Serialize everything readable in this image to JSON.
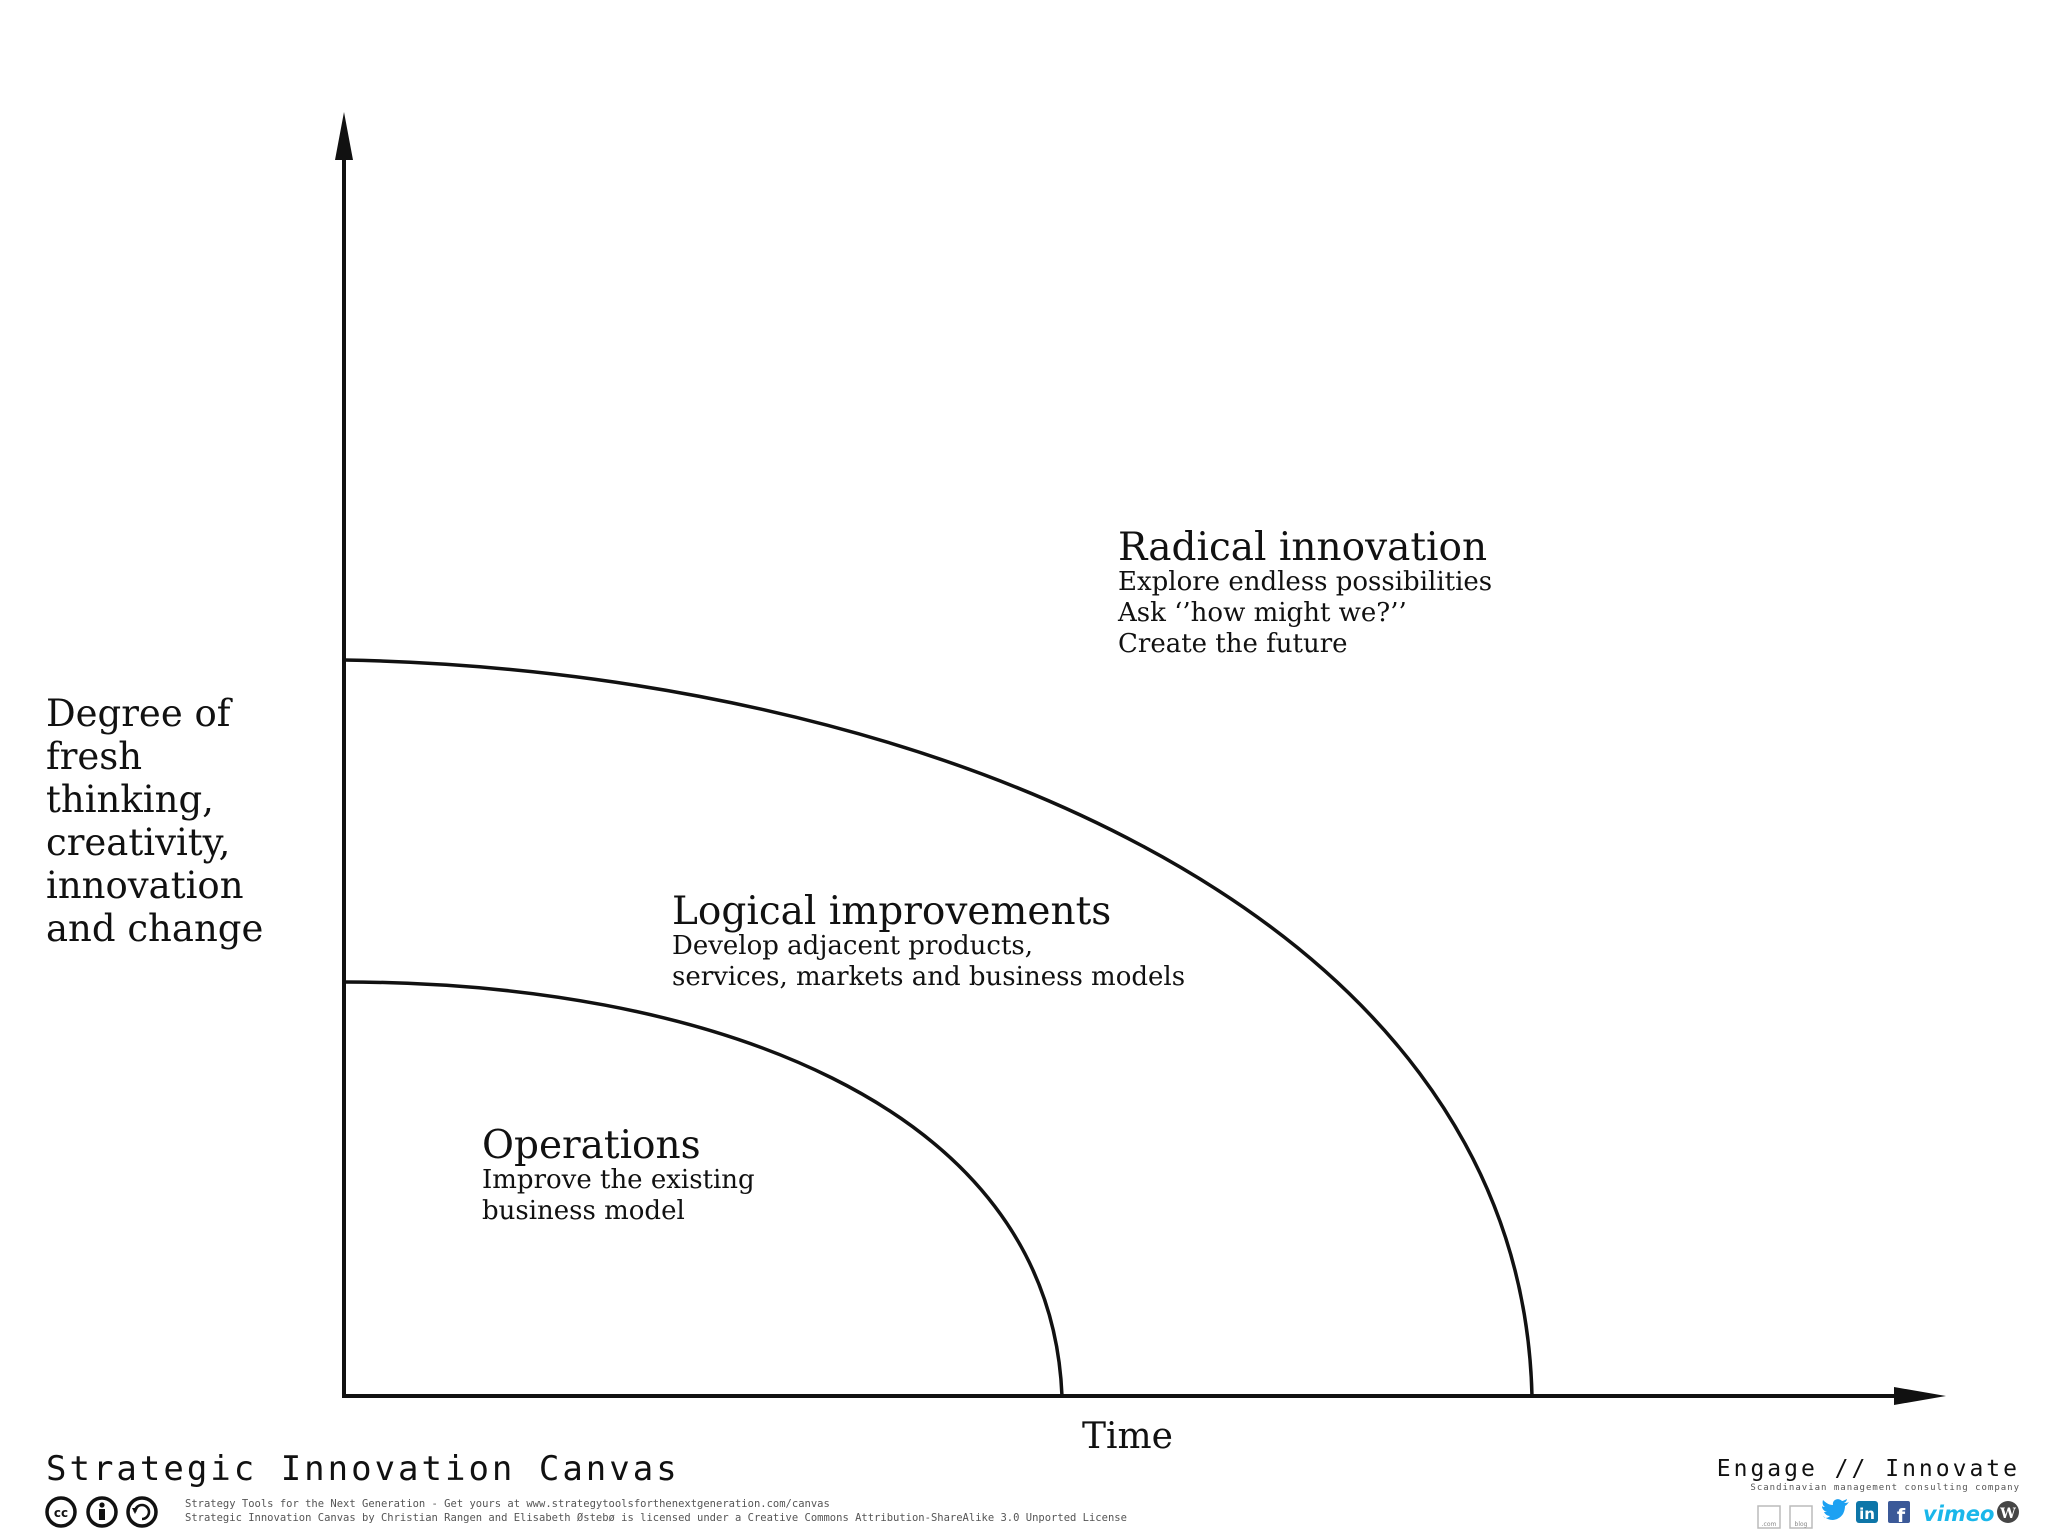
{
  "canvas_title": "Strategic Innovation Canvas",
  "y_axis_label": [
    "Degree of",
    "fresh",
    "thinking,",
    "creativity,",
    "innovation",
    "and change"
  ],
  "x_axis_label": "Time",
  "zones": {
    "radical": {
      "title": "Radical innovation",
      "lines": [
        "Explore endless possibilities",
        "Ask ‘’how might we?’’",
        "Create the future"
      ]
    },
    "logical": {
      "title": "Logical improvements",
      "lines": [
        "Develop adjacent products,",
        "services, markets and business models"
      ]
    },
    "operations": {
      "title": "Operations",
      "lines": [
        "Improve the existing",
        "business model"
      ]
    }
  },
  "footer": {
    "credit_line_1": "Strategy Tools for the Next Generation - Get yours at www.strategytoolsforthenextgeneration.com/canvas",
    "credit_line_2": "Strategic Innovation Canvas by Christian Rangen and Elisabeth Østebø is licensed under a Creative Commons Attribution-ShareAlike 3.0 Unported License",
    "license_icons": [
      "cc-icon",
      "attribution-icon",
      "share-alike-icon"
    ],
    "brand_title": "Engage // Innovate",
    "brand_tagline": "Scandinavian management consulting company",
    "social": {
      "com_label": ".com",
      "blog_label": "blog",
      "twitter_icon": "twitter-icon",
      "linkedin_label": "in",
      "facebook_label": "f",
      "vimeo_label": "vimeo",
      "wordpress_label": "W"
    }
  },
  "colors": {
    "ink": "#111111",
    "twitter": "#1da1f2",
    "linkedin": "#0e76a8",
    "facebook": "#3b5998",
    "vimeo": "#1ab7ea",
    "wordpress": "#464646"
  }
}
